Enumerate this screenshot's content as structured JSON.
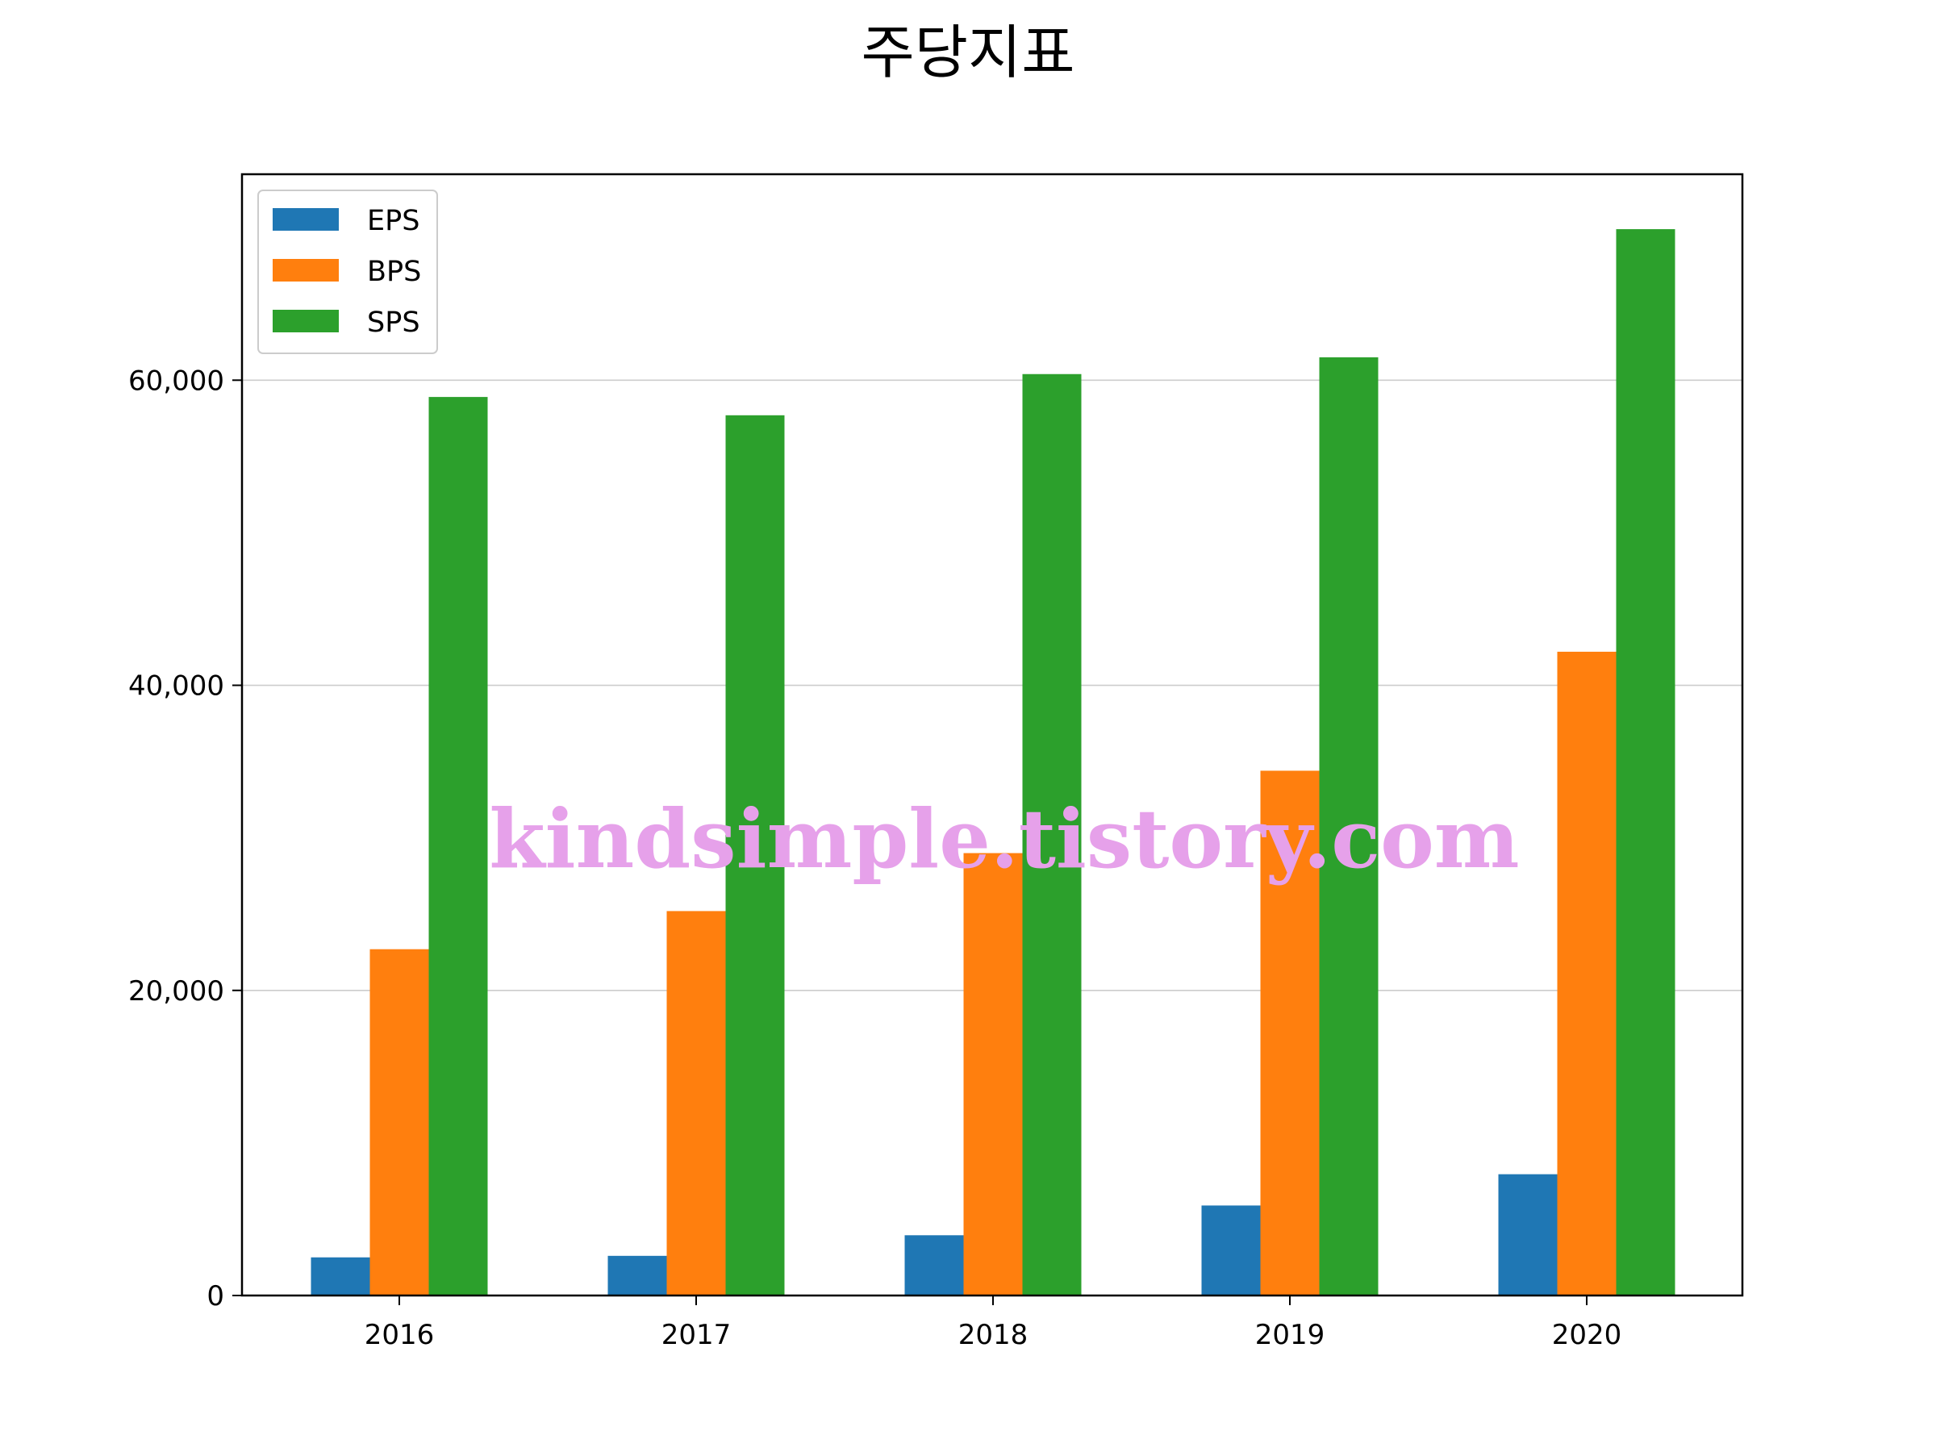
{
  "title": "주당지표",
  "watermark": "kindsimple.tistory.com",
  "chart_data": {
    "type": "bar",
    "categories": [
      "2016",
      "2017",
      "2018",
      "2019",
      "2020"
    ],
    "series": [
      {
        "name": "EPS",
        "color": "#1f77b4",
        "values": [
          2500,
          2600,
          3950,
          5900,
          7950
        ]
      },
      {
        "name": "BPS",
        "color": "#ff7f0e",
        "values": [
          22700,
          25200,
          29000,
          34400,
          42200
        ]
      },
      {
        "name": "SPS",
        "color": "#2ca02c",
        "values": [
          58900,
          57700,
          60400,
          61500,
          69900
        ]
      }
    ],
    "ylim": [
      0,
      73500
    ],
    "yticks": [
      0,
      20000,
      40000,
      60000
    ],
    "ytick_labels": [
      "0",
      "20,000",
      "40,000",
      "60,000"
    ],
    "grid": "horizontal",
    "legend_position": "top-left",
    "xlabel": "",
    "ylabel": ""
  }
}
